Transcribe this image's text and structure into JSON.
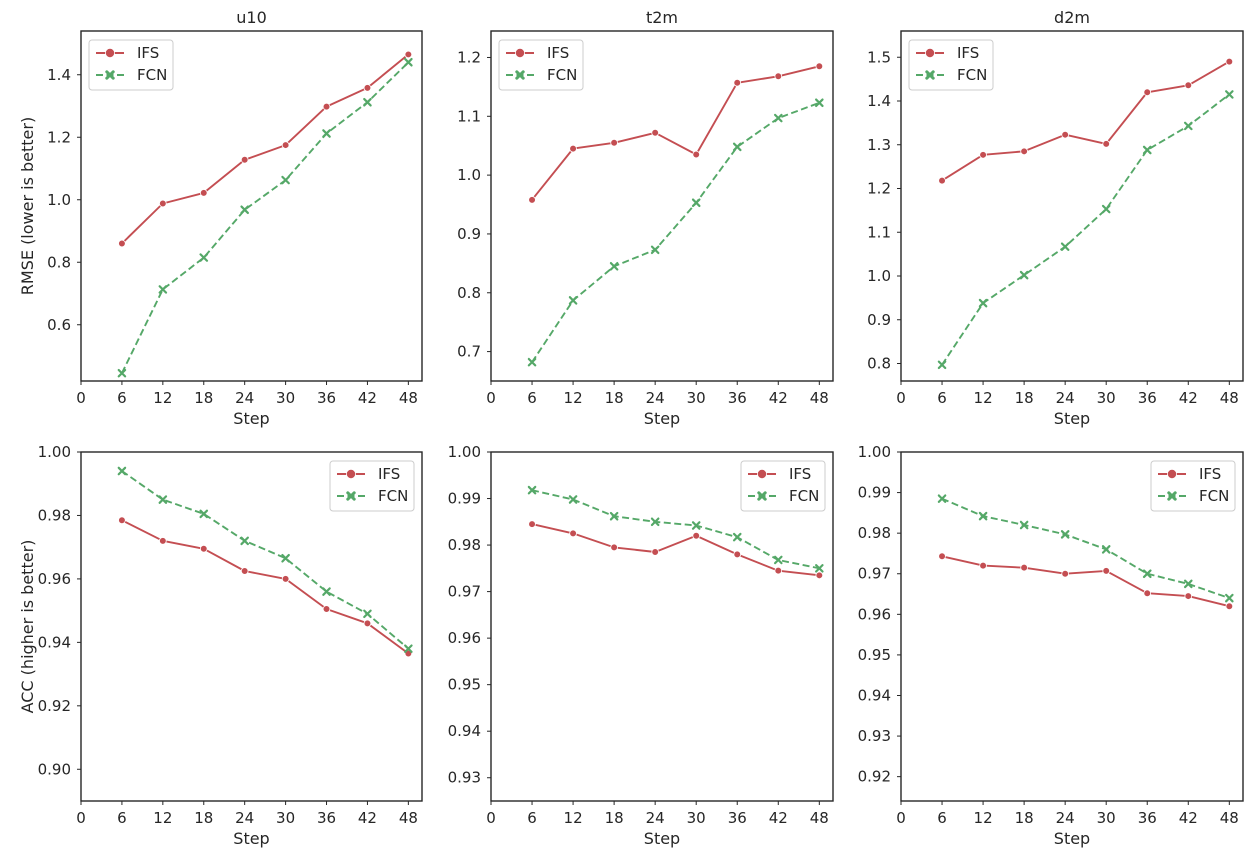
{
  "chart_data": [
    {
      "type": "line",
      "title": "u10",
      "xlabel": "Step",
      "ylabel": "RMSE (lower is better)",
      "x": [
        6,
        12,
        18,
        24,
        30,
        36,
        42,
        48
      ],
      "xticks": [
        0,
        6,
        12,
        18,
        24,
        30,
        36,
        42,
        48
      ],
      "xlim": [
        0,
        50
      ],
      "yticks": [
        0.6,
        0.8,
        1.0,
        1.2,
        1.4
      ],
      "ytick_labels": [
        "0.6",
        "0.8",
        "1.0",
        "1.2",
        "1.4"
      ],
      "ylim": [
        0.42,
        1.54
      ],
      "legend": "upper left",
      "series": [
        {
          "name": "IFS",
          "color": "#c44e52",
          "marker": "circle",
          "dashed": false,
          "values": [
            0.86,
            0.988,
            1.022,
            1.128,
            1.175,
            1.298,
            1.358,
            1.465
          ]
        },
        {
          "name": "FCN",
          "color": "#55a868",
          "marker": "x",
          "dashed": true,
          "values": [
            0.445,
            0.713,
            0.815,
            0.968,
            1.063,
            1.212,
            1.312,
            1.44
          ]
        }
      ]
    },
    {
      "type": "line",
      "title": "t2m",
      "xlabel": "Step",
      "ylabel": "",
      "x": [
        6,
        12,
        18,
        24,
        30,
        36,
        42,
        48
      ],
      "xticks": [
        0,
        6,
        12,
        18,
        24,
        30,
        36,
        42,
        48
      ],
      "xlim": [
        0,
        50
      ],
      "yticks": [
        0.7,
        0.8,
        0.9,
        1.0,
        1.1,
        1.2
      ],
      "ytick_labels": [
        "0.7",
        "0.8",
        "0.9",
        "1.0",
        "1.1",
        "1.2"
      ],
      "ylim": [
        0.65,
        1.245
      ],
      "legend": "upper left",
      "series": [
        {
          "name": "IFS",
          "color": "#c44e52",
          "marker": "circle",
          "dashed": false,
          "values": [
            0.958,
            1.045,
            1.055,
            1.072,
            1.035,
            1.157,
            1.168,
            1.185
          ]
        },
        {
          "name": "FCN",
          "color": "#55a868",
          "marker": "x",
          "dashed": true,
          "values": [
            0.682,
            0.787,
            0.845,
            0.873,
            0.953,
            1.048,
            1.097,
            1.123
          ]
        }
      ]
    },
    {
      "type": "line",
      "title": "d2m",
      "xlabel": "Step",
      "ylabel": "",
      "x": [
        6,
        12,
        18,
        24,
        30,
        36,
        42,
        48
      ],
      "xticks": [
        0,
        6,
        12,
        18,
        24,
        30,
        36,
        42,
        48
      ],
      "xlim": [
        0,
        50
      ],
      "yticks": [
        0.8,
        0.9,
        1.0,
        1.1,
        1.2,
        1.3,
        1.4,
        1.5
      ],
      "ytick_labels": [
        "0.8",
        "0.9",
        "1.0",
        "1.1",
        "1.2",
        "1.3",
        "1.4",
        "1.5"
      ],
      "ylim": [
        0.76,
        1.56
      ],
      "legend": "upper left",
      "series": [
        {
          "name": "IFS",
          "color": "#c44e52",
          "marker": "circle",
          "dashed": false,
          "values": [
            1.218,
            1.277,
            1.285,
            1.323,
            1.302,
            1.42,
            1.436,
            1.49
          ]
        },
        {
          "name": "FCN",
          "color": "#55a868",
          "marker": "x",
          "dashed": true,
          "values": [
            0.797,
            0.938,
            1.002,
            1.067,
            1.153,
            1.288,
            1.343,
            1.415
          ]
        }
      ]
    },
    {
      "type": "line",
      "title": "",
      "xlabel": "Step",
      "ylabel": "ACC (higher is better)",
      "x": [
        6,
        12,
        18,
        24,
        30,
        36,
        42,
        48
      ],
      "xticks": [
        0,
        6,
        12,
        18,
        24,
        30,
        36,
        42,
        48
      ],
      "xlim": [
        0,
        50
      ],
      "yticks": [
        0.9,
        0.92,
        0.94,
        0.96,
        0.98,
        1.0
      ],
      "ytick_labels": [
        "0.90",
        "0.92",
        "0.94",
        "0.96",
        "0.98",
        "1.00"
      ],
      "ylim": [
        0.89,
        1.0
      ],
      "legend": "upper right",
      "series": [
        {
          "name": "IFS",
          "color": "#c44e52",
          "marker": "circle",
          "dashed": false,
          "values": [
            0.9785,
            0.972,
            0.9695,
            0.9625,
            0.96,
            0.9505,
            0.946,
            0.9365
          ]
        },
        {
          "name": "FCN",
          "color": "#55a868",
          "marker": "x",
          "dashed": true,
          "values": [
            0.994,
            0.985,
            0.9805,
            0.972,
            0.9665,
            0.956,
            0.949,
            0.938
          ]
        }
      ]
    },
    {
      "type": "line",
      "title": "",
      "xlabel": "Step",
      "ylabel": "",
      "x": [
        6,
        12,
        18,
        24,
        30,
        36,
        42,
        48
      ],
      "xticks": [
        0,
        6,
        12,
        18,
        24,
        30,
        36,
        42,
        48
      ],
      "xlim": [
        0,
        50
      ],
      "yticks": [
        0.93,
        0.94,
        0.95,
        0.96,
        0.97,
        0.98,
        0.99,
        1.0
      ],
      "ytick_labels": [
        "0.93",
        "0.94",
        "0.95",
        "0.96",
        "0.97",
        "0.98",
        "0.99",
        "1.00"
      ],
      "ylim": [
        0.925,
        1.0
      ],
      "legend": "upper right",
      "series": [
        {
          "name": "IFS",
          "color": "#c44e52",
          "marker": "circle",
          "dashed": false,
          "values": [
            0.9845,
            0.9825,
            0.9795,
            0.9785,
            0.982,
            0.978,
            0.9745,
            0.9735
          ]
        },
        {
          "name": "FCN",
          "color": "#55a868",
          "marker": "x",
          "dashed": true,
          "values": [
            0.9918,
            0.9898,
            0.9862,
            0.985,
            0.9842,
            0.9817,
            0.9768,
            0.975
          ]
        }
      ]
    },
    {
      "type": "line",
      "title": "",
      "xlabel": "Step",
      "ylabel": "",
      "x": [
        6,
        12,
        18,
        24,
        30,
        36,
        42,
        48
      ],
      "xticks": [
        0,
        6,
        12,
        18,
        24,
        30,
        36,
        42,
        48
      ],
      "xlim": [
        0,
        50
      ],
      "yticks": [
        0.92,
        0.93,
        0.94,
        0.95,
        0.96,
        0.97,
        0.98,
        0.99,
        1.0
      ],
      "ytick_labels": [
        "0.92",
        "0.93",
        "0.94",
        "0.95",
        "0.96",
        "0.97",
        "0.98",
        "0.99",
        "1.00"
      ],
      "ylim": [
        0.914,
        1.0
      ],
      "legend": "upper right",
      "series": [
        {
          "name": "IFS",
          "color": "#c44e52",
          "marker": "circle",
          "dashed": false,
          "values": [
            0.9743,
            0.972,
            0.9715,
            0.97,
            0.9707,
            0.9652,
            0.9645,
            0.962
          ]
        },
        {
          "name": "FCN",
          "color": "#55a868",
          "marker": "x",
          "dashed": true,
          "values": [
            0.9885,
            0.9842,
            0.982,
            0.9797,
            0.976,
            0.97,
            0.9675,
            0.964
          ]
        }
      ]
    }
  ]
}
